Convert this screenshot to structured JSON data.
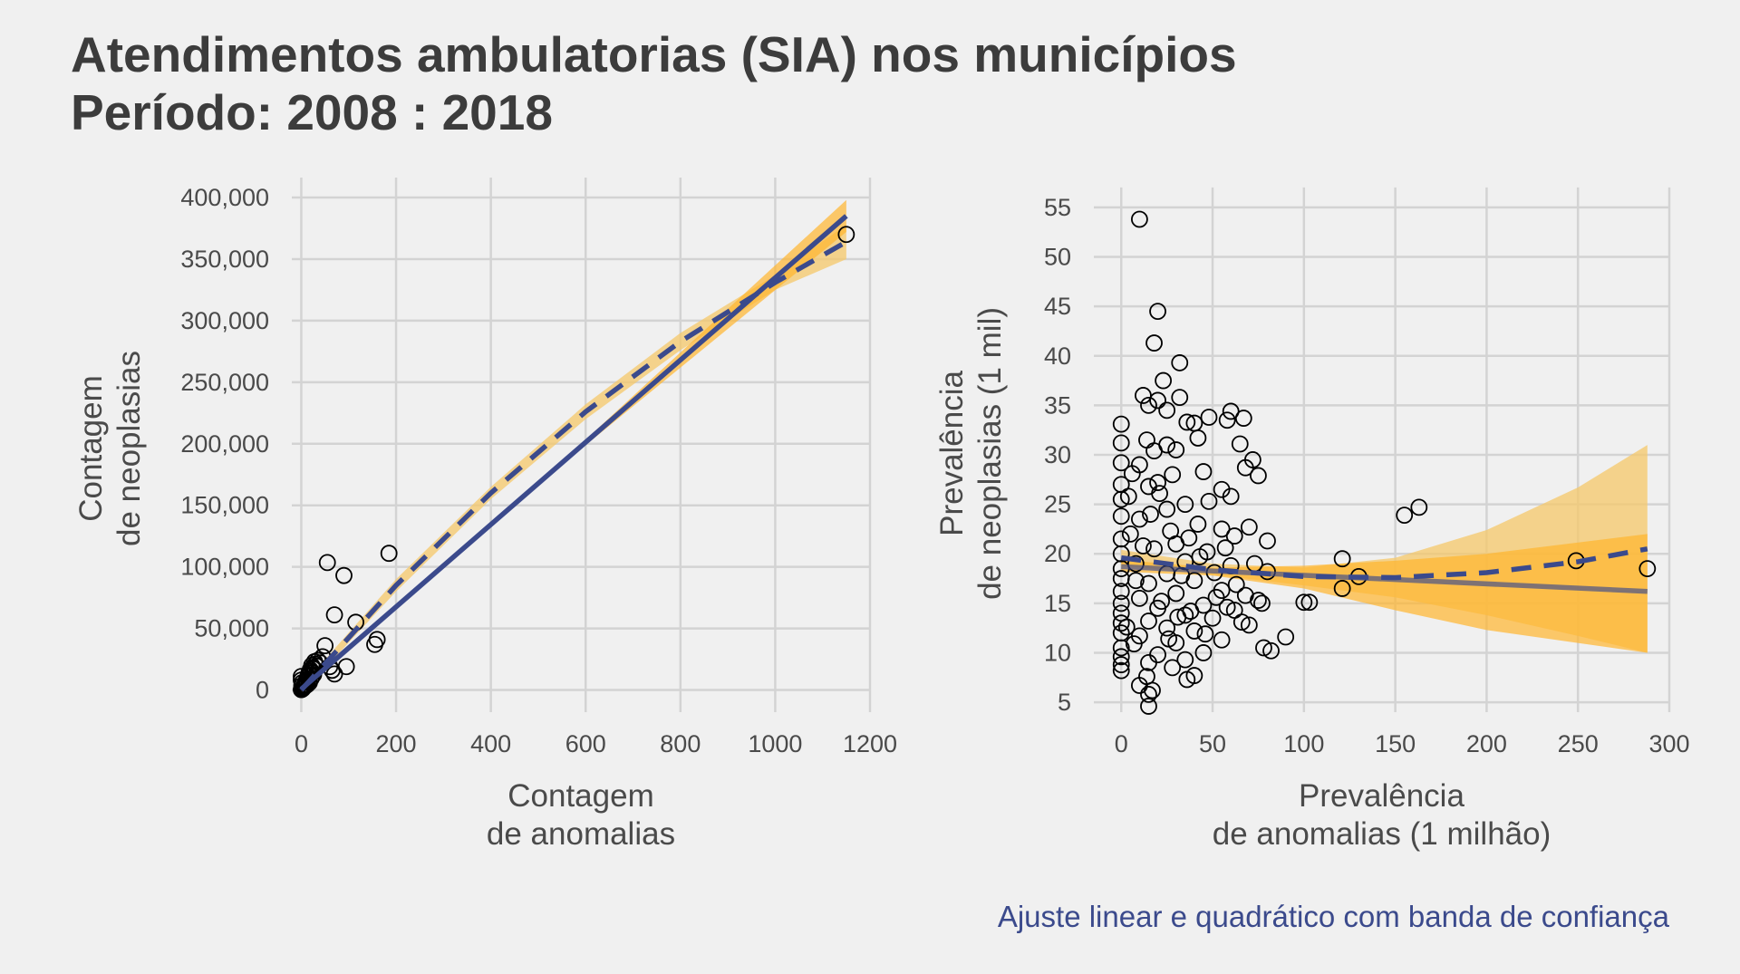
{
  "title": {
    "line1": "Atendimentos ambulatorias (SIA) nos municípios",
    "line2": "Período: 2008 : 2018"
  },
  "caption": "Ajuste linear e quadrático com banda de confiança",
  "colors": {
    "background": "#f0f0f0",
    "linear_fit": "#3b4a8c",
    "quadratic_fit": "#3b4a8c",
    "linear_band": "#ffb52e",
    "quadratic_band": "#f5c869",
    "points": "#000000",
    "grid": "#d3d3d3"
  },
  "chart_data": [
    {
      "type": "scatter",
      "xlabel": [
        "Contagem",
        "de anomalias"
      ],
      "ylabel": [
        "Contagem",
        "de neoplasias"
      ],
      "xlim": [
        -20,
        1200
      ],
      "ylim": [
        -18000,
        400000
      ],
      "xticks": [
        0,
        200,
        400,
        600,
        800,
        1000,
        1200
      ],
      "xtick_labels": [
        "0",
        "200",
        "400",
        "600",
        "800",
        "1000",
        "1200"
      ],
      "yticks": [
        0,
        50000,
        100000,
        150000,
        200000,
        250000,
        300000,
        350000,
        400000
      ],
      "ytick_labels": [
        "0",
        "50,000",
        "100,000",
        "150,000",
        "200,000",
        "250,000",
        "300,000",
        "350,000",
        "400,000"
      ],
      "grid": true,
      "points": [
        [
          1150,
          370000
        ],
        [
          185,
          111000
        ],
        [
          55,
          103500
        ],
        [
          90,
          93000
        ],
        [
          70,
          61000
        ],
        [
          115,
          55000
        ],
        [
          160,
          41000
        ],
        [
          155,
          37000
        ],
        [
          50,
          36000
        ],
        [
          45,
          27000
        ],
        [
          95,
          19000
        ],
        [
          65,
          16000
        ],
        [
          70,
          13000
        ],
        [
          60,
          19000
        ],
        [
          40,
          22000
        ],
        [
          35,
          24000
        ],
        [
          30,
          21000
        ],
        [
          25,
          18000
        ],
        [
          20,
          15000
        ],
        [
          28,
          23000
        ],
        [
          22,
          20000
        ],
        [
          18,
          12000
        ],
        [
          15,
          9000
        ],
        [
          12,
          7000
        ],
        [
          10,
          5000
        ],
        [
          8,
          3000
        ],
        [
          5,
          2000
        ],
        [
          3,
          1000
        ],
        [
          1,
          500
        ],
        [
          0,
          300
        ],
        [
          14,
          11000
        ],
        [
          11,
          8000
        ],
        [
          9,
          6500
        ],
        [
          7,
          4000
        ],
        [
          6,
          2500
        ],
        [
          4,
          1500
        ],
        [
          2,
          800
        ],
        [
          16,
          13500
        ],
        [
          19,
          16500
        ],
        [
          24,
          14000
        ],
        [
          27,
          17000
        ],
        [
          32,
          19500
        ],
        [
          13,
          4500
        ],
        [
          17,
          6000
        ],
        [
          21,
          9500
        ],
        [
          26,
          12500
        ],
        [
          0,
          8000
        ],
        [
          0,
          11000
        ],
        [
          1,
          3500
        ],
        [
          2,
          6000
        ]
      ],
      "linear_fit": [
        [
          0,
          700
        ],
        [
          1150,
          385000
        ]
      ],
      "linear_band": {
        "lower": [
          [
            0,
            -2000
          ],
          [
            575,
            191000
          ],
          [
            1150,
            372000
          ]
        ],
        "upper": [
          [
            0,
            3400
          ],
          [
            575,
            194500
          ],
          [
            1150,
            398000
          ]
        ]
      },
      "quadratic_fit": [
        [
          0,
          0
        ],
        [
          200,
          85000
        ],
        [
          400,
          160000
        ],
        [
          600,
          226000
        ],
        [
          800,
          283000
        ],
        [
          1000,
          331000
        ],
        [
          1150,
          364000
        ]
      ],
      "quadratic_band": {
        "lower": [
          [
            0,
            -3000
          ],
          [
            200,
            80000
          ],
          [
            400,
            155000
          ],
          [
            600,
            220000
          ],
          [
            800,
            276000
          ],
          [
            1000,
            325000
          ],
          [
            1150,
            350000
          ]
        ],
        "upper": [
          [
            0,
            3000
          ],
          [
            200,
            90000
          ],
          [
            400,
            165000
          ],
          [
            600,
            232000
          ],
          [
            800,
            290000
          ],
          [
            1000,
            337000
          ],
          [
            1150,
            378000
          ]
        ]
      }
    },
    {
      "type": "scatter",
      "xlabel": [
        "Prevalência",
        "de anomalias (1 milhão)"
      ],
      "ylabel": [
        "Prevalência",
        "de neoplasias (1 mil)"
      ],
      "xlim": [
        -15,
        300
      ],
      "ylim": [
        4,
        56
      ],
      "xticks": [
        0,
        50,
        100,
        150,
        200,
        250,
        300
      ],
      "xtick_labels": [
        "0",
        "50",
        "100",
        "150",
        "200",
        "250",
        "300"
      ],
      "yticks": [
        5,
        10,
        15,
        20,
        25,
        30,
        35,
        40,
        45,
        50,
        55
      ],
      "ytick_labels": [
        "5",
        "10",
        "15",
        "20",
        "25",
        "30",
        "35",
        "40",
        "45",
        "50",
        "55"
      ],
      "grid": true,
      "points": [
        [
          10,
          53.8
        ],
        [
          20,
          44.5
        ],
        [
          18,
          41.3
        ],
        [
          32,
          39.3
        ],
        [
          23,
          37.5
        ],
        [
          12,
          36.0
        ],
        [
          32,
          35.8
        ],
        [
          20,
          35.5
        ],
        [
          15,
          35.0
        ],
        [
          60,
          34.4
        ],
        [
          25,
          34.5
        ],
        [
          48,
          33.8
        ],
        [
          58,
          33.5
        ],
        [
          67,
          33.7
        ],
        [
          36,
          33.3
        ],
        [
          40,
          33.2
        ],
        [
          0,
          33.1
        ],
        [
          0,
          31.2
        ],
        [
          65,
          31.1
        ],
        [
          14,
          31.5
        ],
        [
          42,
          31.7
        ],
        [
          25,
          31.0
        ],
        [
          18,
          30.4
        ],
        [
          30,
          30.5
        ],
        [
          72,
          29.5
        ],
        [
          0,
          29.2
        ],
        [
          10,
          29.0
        ],
        [
          68,
          28.7
        ],
        [
          75,
          27.9
        ],
        [
          45,
          28.3
        ],
        [
          28,
          28.0
        ],
        [
          0,
          27.0
        ],
        [
          20,
          27.2
        ],
        [
          15,
          26.8
        ],
        [
          55,
          26.5
        ],
        [
          60,
          25.8
        ],
        [
          0,
          25.5
        ],
        [
          35,
          25.0
        ],
        [
          48,
          25.3
        ],
        [
          155,
          23.9
        ],
        [
          163,
          24.7
        ],
        [
          25,
          24.5
        ],
        [
          0,
          23.8
        ],
        [
          10,
          23.5
        ],
        [
          42,
          23.0
        ],
        [
          55,
          22.5
        ],
        [
          70,
          22.7
        ],
        [
          62,
          21.8
        ],
        [
          80,
          21.3
        ],
        [
          0,
          21.5
        ],
        [
          30,
          21.0
        ],
        [
          18,
          20.5
        ],
        [
          47,
          20.2
        ],
        [
          0,
          20.0
        ],
        [
          121,
          19.5
        ],
        [
          249,
          19.3
        ],
        [
          35,
          19.2
        ],
        [
          8,
          19.0
        ],
        [
          60,
          18.8
        ],
        [
          288,
          18.5
        ],
        [
          0,
          18.5
        ],
        [
          80,
          18.2
        ],
        [
          25,
          18.0
        ],
        [
          130,
          17.7
        ],
        [
          0,
          17.5
        ],
        [
          40,
          17.3
        ],
        [
          15,
          17.0
        ],
        [
          121,
          16.5
        ],
        [
          55,
          16.3
        ],
        [
          0,
          16.2
        ],
        [
          30,
          16.0
        ],
        [
          68,
          15.8
        ],
        [
          10,
          15.5
        ],
        [
          75,
          15.3
        ],
        [
          100,
          15.1
        ],
        [
          103,
          15.1
        ],
        [
          0,
          15.0
        ],
        [
          45,
          14.8
        ],
        [
          20,
          14.5
        ],
        [
          62,
          14.3
        ],
        [
          0,
          14.0
        ],
        [
          35,
          13.8
        ],
        [
          50,
          13.5
        ],
        [
          15,
          13.2
        ],
        [
          0,
          13.0
        ],
        [
          70,
          12.8
        ],
        [
          25,
          12.5
        ],
        [
          40,
          12.2
        ],
        [
          0,
          12.0
        ],
        [
          90,
          11.6
        ],
        [
          10,
          11.7
        ],
        [
          55,
          11.3
        ],
        [
          30,
          11.0
        ],
        [
          78,
          10.5
        ],
        [
          0,
          10.5
        ],
        [
          82,
          10.2
        ],
        [
          45,
          10.0
        ],
        [
          20,
          9.8
        ],
        [
          0,
          9.6
        ],
        [
          35,
          9.3
        ],
        [
          15,
          9.0
        ],
        [
          0,
          8.8
        ],
        [
          28,
          8.5
        ],
        [
          0,
          8.2
        ],
        [
          40,
          7.7
        ],
        [
          36,
          7.3
        ],
        [
          14,
          7.6
        ],
        [
          10,
          6.7
        ],
        [
          17,
          6.2
        ],
        [
          15,
          5.8
        ],
        [
          15,
          4.6
        ],
        [
          5,
          22.0
        ],
        [
          8,
          17.3
        ],
        [
          12,
          20.8
        ],
        [
          22,
          15.2
        ],
        [
          27,
          22.3
        ],
        [
          33,
          17.8
        ],
        [
          38,
          14.2
        ],
        [
          43,
          19.7
        ],
        [
          52,
          15.6
        ],
        [
          57,
          20.6
        ],
        [
          63,
          16.9
        ],
        [
          66,
          13.1
        ],
        [
          4,
          25.8
        ],
        [
          6,
          28.1
        ],
        [
          3,
          12.6
        ],
        [
          7,
          10.9
        ],
        [
          16,
          24.0
        ],
        [
          21,
          26.1
        ],
        [
          26,
          11.4
        ],
        [
          31,
          13.6
        ],
        [
          37,
          21.6
        ],
        [
          46,
          11.9
        ],
        [
          51,
          18.1
        ],
        [
          58,
          14.6
        ],
        [
          73,
          19.0
        ],
        [
          77,
          15.0
        ]
      ],
      "linear_fit": [
        [
          0,
          18.7
        ],
        [
          288,
          16.2
        ]
      ],
      "linear_band": {
        "lower": [
          [
            0,
            18.2
          ],
          [
            50,
            17.8
          ],
          [
            100,
            16.5
          ],
          [
            150,
            14.3
          ],
          [
            200,
            12.3
          ],
          [
            288,
            10.0
          ]
        ],
        "upper": [
          [
            0,
            19.4
          ],
          [
            50,
            18.6
          ],
          [
            100,
            18.8
          ],
          [
            150,
            19.3
          ],
          [
            200,
            20.0
          ],
          [
            288,
            22.0
          ]
        ]
      },
      "quadratic_fit": [
        [
          0,
          19.6
        ],
        [
          50,
          18.4
        ],
        [
          100,
          17.7
        ],
        [
          150,
          17.6
        ],
        [
          200,
          18.1
        ],
        [
          250,
          19.2
        ],
        [
          288,
          20.5
        ]
      ],
      "quadratic_band": {
        "lower": [
          [
            0,
            18.8
          ],
          [
            50,
            17.9
          ],
          [
            100,
            16.8
          ],
          [
            150,
            15.6
          ],
          [
            200,
            13.8
          ],
          [
            250,
            11.7
          ],
          [
            288,
            10.0
          ]
        ],
        "upper": [
          [
            0,
            20.4
          ],
          [
            50,
            19.0
          ],
          [
            100,
            18.6
          ],
          [
            150,
            19.6
          ],
          [
            200,
            22.4
          ],
          [
            250,
            26.7
          ],
          [
            288,
            31.0
          ]
        ]
      }
    }
  ]
}
